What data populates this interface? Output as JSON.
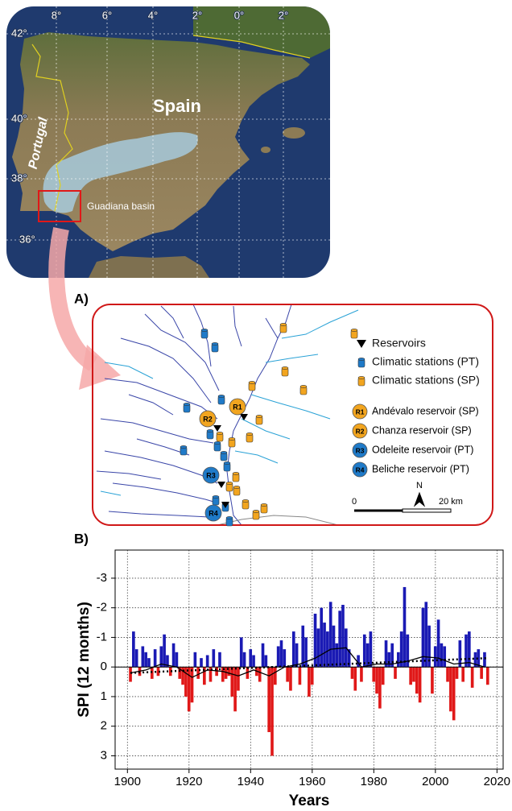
{
  "overview_map": {
    "country_labels": [
      "Spain",
      "Portugal"
    ],
    "basin_label": "Guadiana basin",
    "lat_labels": [
      "42°",
      "40°",
      "38°",
      "36°"
    ],
    "lon_labels": [
      "8°",
      "6°",
      "4°",
      "2°",
      "0°",
      "2°"
    ]
  },
  "study_area": {
    "panel_label": "A)",
    "legend": [
      "Reservoirs",
      "Climatic stations (PT)",
      "Climatic stations (SP)"
    ],
    "reservoirs": [
      {
        "code": "R1",
        "label": "Andévalo reservoir (SP)",
        "color": "#f2a51f"
      },
      {
        "code": "R2",
        "label": "Chanza reservoir (SP)",
        "color": "#f2a51f"
      },
      {
        "code": "R3",
        "label": "Odeleite reservoir (PT)",
        "color": "#1f7ac8"
      },
      {
        "code": "R4",
        "label": "Beliche reservoir (PT)",
        "color": "#1f7ac8"
      }
    ],
    "station_colors": {
      "PT": "#1f7ac8",
      "SP": "#f2a51f"
    },
    "scale": {
      "start": "0",
      "end": "20 km"
    },
    "north": "N"
  },
  "chart_data": {
    "type": "bar",
    "panel_label": "B)",
    "ylabel": "SPI (12 months)",
    "xlabel": "Years",
    "x": [
      1901,
      1902,
      1903,
      1904,
      1905,
      1906,
      1907,
      1908,
      1909,
      1910,
      1911,
      1912,
      1913,
      1914,
      1915,
      1916,
      1917,
      1918,
      1919,
      1920,
      1921,
      1922,
      1923,
      1924,
      1925,
      1926,
      1927,
      1928,
      1929,
      1930,
      1931,
      1932,
      1933,
      1934,
      1935,
      1936,
      1937,
      1938,
      1939,
      1940,
      1941,
      1942,
      1943,
      1944,
      1945,
      1946,
      1947,
      1948,
      1949,
      1950,
      1951,
      1952,
      1953,
      1954,
      1955,
      1956,
      1957,
      1958,
      1959,
      1960,
      1961,
      1962,
      1963,
      1964,
      1965,
      1966,
      1967,
      1968,
      1969,
      1970,
      1971,
      1972,
      1973,
      1974,
      1975,
      1976,
      1977,
      1978,
      1979,
      1980,
      1981,
      1982,
      1983,
      1984,
      1985,
      1986,
      1987,
      1988,
      1989,
      1990,
      1991,
      1992,
      1993,
      1994,
      1995,
      1996,
      1997,
      1998,
      1999,
      2000,
      2001,
      2002,
      2003,
      2004,
      2005,
      2006,
      2007,
      2008,
      2009,
      2010,
      2011,
      2012,
      2013,
      2014,
      2015,
      2016,
      2017
    ],
    "values": [
      0.5,
      -1.2,
      -0.6,
      0.3,
      -0.7,
      -0.5,
      -0.3,
      0.4,
      -0.6,
      0.3,
      -0.7,
      -1.1,
      -0.4,
      0.3,
      -0.8,
      -0.5,
      0.4,
      0.6,
      1.0,
      1.5,
      1.2,
      -0.5,
      0.4,
      -0.3,
      0.6,
      -0.4,
      0.5,
      -0.6,
      0.3,
      -0.5,
      0.5,
      0.4,
      0.3,
      1.0,
      1.5,
      0.8,
      -1.0,
      -0.5,
      0.4,
      -0.6,
      -0.4,
      0.3,
      0.5,
      -0.8,
      -0.4,
      2.2,
      3.0,
      0.6,
      -0.7,
      -0.9,
      -0.6,
      0.5,
      0.8,
      -1.2,
      -0.8,
      0.6,
      -1.4,
      -1.0,
      1.0,
      0.6,
      -1.8,
      -1.3,
      -2.0,
      -1.5,
      -1.2,
      -2.2,
      -1.4,
      -0.8,
      -1.9,
      -2.1,
      -1.3,
      -0.6,
      0.4,
      0.8,
      -0.4,
      0.5,
      -1.1,
      -0.8,
      -1.2,
      0.5,
      0.9,
      1.4,
      0.6,
      -0.9,
      -0.5,
      -0.8,
      0.4,
      -0.5,
      -1.2,
      -2.7,
      -1.1,
      0.6,
      0.5,
      0.9,
      1.2,
      -2.0,
      -2.2,
      -1.4,
      0.9,
      -0.7,
      -1.6,
      -0.8,
      -0.7,
      0.5,
      1.5,
      1.8,
      0.4,
      -0.9,
      0.5,
      -1.1,
      -1.2,
      0.7,
      -0.5,
      -0.6,
      0.4,
      -0.5,
      0.6
    ],
    "colors": {
      "negative": "#1a1ab4",
      "positive": "#e01818"
    },
    "smooth": {
      "x": [
        1901,
        1906,
        1911,
        1916,
        1921,
        1926,
        1931,
        1936,
        1941,
        1946,
        1951,
        1956,
        1961,
        1966,
        1971,
        1976,
        1981,
        1986,
        1991,
        1996,
        2001,
        2006,
        2011,
        2016
      ],
      "values": [
        0.2,
        0.1,
        -0.1,
        0.0,
        0.35,
        0.1,
        0.15,
        0.3,
        0.1,
        0.3,
        0.0,
        -0.1,
        -0.3,
        -0.6,
        -0.65,
        0.0,
        -0.1,
        -0.1,
        -0.2,
        -0.35,
        -0.3,
        -0.1,
        -0.15,
        0.0
      ],
      "color": "#000000"
    },
    "trend": {
      "x": [
        1901,
        2017
      ],
      "values": [
        0.2,
        -0.3
      ],
      "color": "#000000"
    },
    "xlim": [
      1896,
      2022
    ],
    "xticks": [
      1900,
      1920,
      1940,
      1960,
      1980,
      2000,
      2020
    ],
    "ylim": [
      -3.95,
      3.45
    ],
    "yticks": [
      -3,
      -2,
      -1,
      0,
      1,
      2,
      3
    ],
    "y_inverted": true,
    "grid": true
  }
}
